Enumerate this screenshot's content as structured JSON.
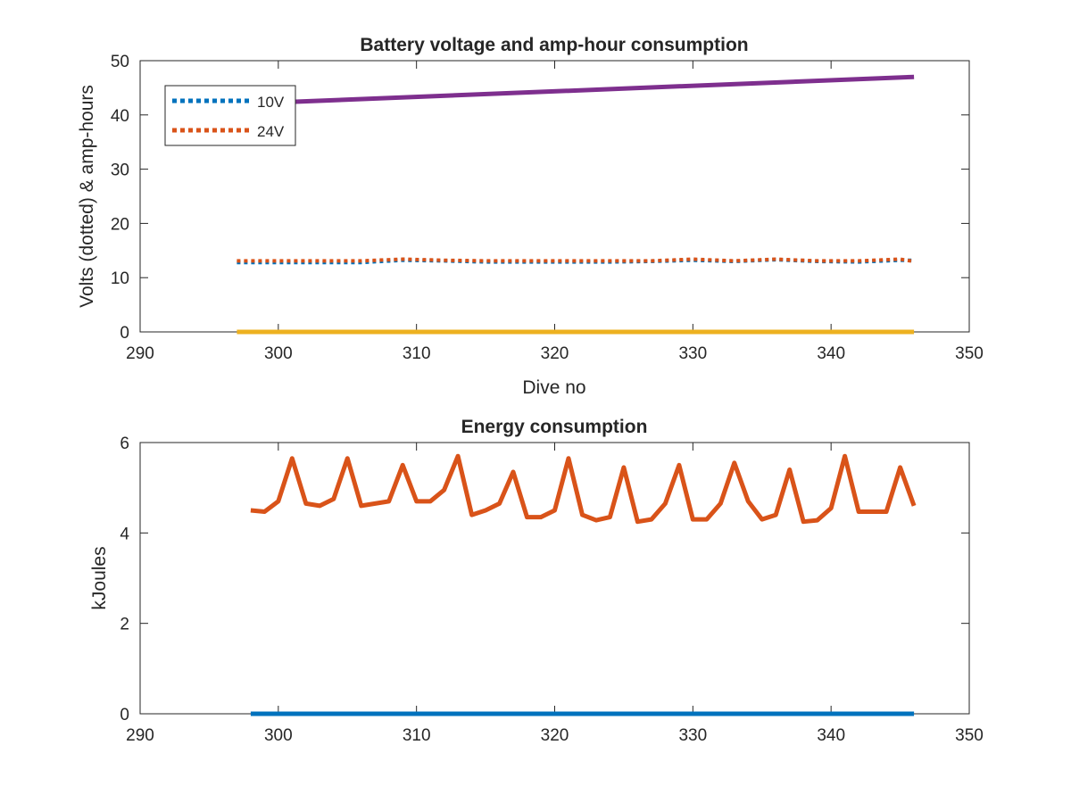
{
  "chart_data": [
    {
      "type": "line",
      "title": "Battery voltage and amp-hour consumption",
      "xlabel": "Dive no",
      "ylabel": "Volts (dotted) & amp-hours",
      "xlim": [
        290,
        350
      ],
      "ylim": [
        0,
        50
      ],
      "xticks": [
        "290",
        "300",
        "310",
        "320",
        "330",
        "340",
        "350"
      ],
      "yticks": [
        "0",
        "10",
        "20",
        "30",
        "40",
        "50"
      ],
      "grid": false,
      "legend_position": "top-left",
      "series": [
        {
          "name": "10V",
          "style": "dotted",
          "color": "#0072bd",
          "x": [
            297,
            300,
            303,
            306,
            309,
            312,
            315,
            318,
            321,
            324,
            327,
            330,
            333,
            336,
            339,
            342,
            345,
            346
          ],
          "y": [
            12.8,
            12.8,
            12.8,
            12.8,
            13.2,
            13.1,
            12.9,
            12.9,
            12.9,
            12.9,
            13.0,
            13.2,
            13.0,
            13.3,
            13.0,
            12.9,
            13.2,
            13.2
          ]
        },
        {
          "name": "24V",
          "style": "dotted",
          "color": "#d95319",
          "x": [
            297,
            300,
            303,
            306,
            309,
            312,
            315,
            318,
            321,
            324,
            327,
            330,
            333,
            336,
            339,
            342,
            345,
            346
          ],
          "y": [
            13.1,
            13.1,
            13.1,
            13.1,
            13.4,
            13.2,
            13.1,
            13.1,
            13.1,
            13.1,
            13.1,
            13.4,
            13.1,
            13.4,
            13.1,
            13.1,
            13.4,
            13.0
          ]
        },
        {
          "style": "solid",
          "color": "#7e2f8e",
          "x": [
            300,
            346
          ],
          "y": [
            42.3,
            47.0
          ]
        },
        {
          "style": "solid",
          "color": "#edb120",
          "x": [
            297,
            346
          ],
          "y": [
            0,
            0
          ]
        }
      ]
    },
    {
      "type": "line",
      "title": "Energy consumption",
      "xlabel": "",
      "ylabel": "kJoules",
      "xlim": [
        290,
        350
      ],
      "ylim": [
        0,
        6
      ],
      "xticks": [
        "290",
        "300",
        "310",
        "320",
        "330",
        "340",
        "350"
      ],
      "yticks": [
        "0",
        "2",
        "4",
        "6"
      ],
      "grid": false,
      "series": [
        {
          "style": "solid",
          "color": "#d95319",
          "x": [
            298,
            299,
            300,
            301,
            302,
            303,
            304,
            305,
            306,
            307,
            308,
            309,
            310,
            311,
            312,
            313,
            314,
            315,
            316,
            317,
            318,
            319,
            320,
            321,
            322,
            323,
            324,
            325,
            326,
            327,
            328,
            329,
            330,
            331,
            332,
            333,
            334,
            335,
            336,
            337,
            338,
            339,
            340,
            341,
            342,
            343,
            344,
            345,
            346
          ],
          "y": [
            4.5,
            4.47,
            4.7,
            5.65,
            4.65,
            4.6,
            4.75,
            5.65,
            4.6,
            4.65,
            4.7,
            5.5,
            4.7,
            4.7,
            4.95,
            5.7,
            4.4,
            4.5,
            4.65,
            5.35,
            4.35,
            4.35,
            4.5,
            5.65,
            4.4,
            4.28,
            4.35,
            5.45,
            4.25,
            4.3,
            4.65,
            5.5,
            4.3,
            4.3,
            4.65,
            5.55,
            4.7,
            4.3,
            4.4,
            5.4,
            4.25,
            4.28,
            4.55,
            5.7,
            4.47,
            4.47,
            4.47,
            5.45,
            4.6
          ]
        },
        {
          "style": "solid",
          "color": "#0072bd",
          "x": [
            298,
            346
          ],
          "y": [
            0,
            0
          ]
        }
      ]
    }
  ]
}
